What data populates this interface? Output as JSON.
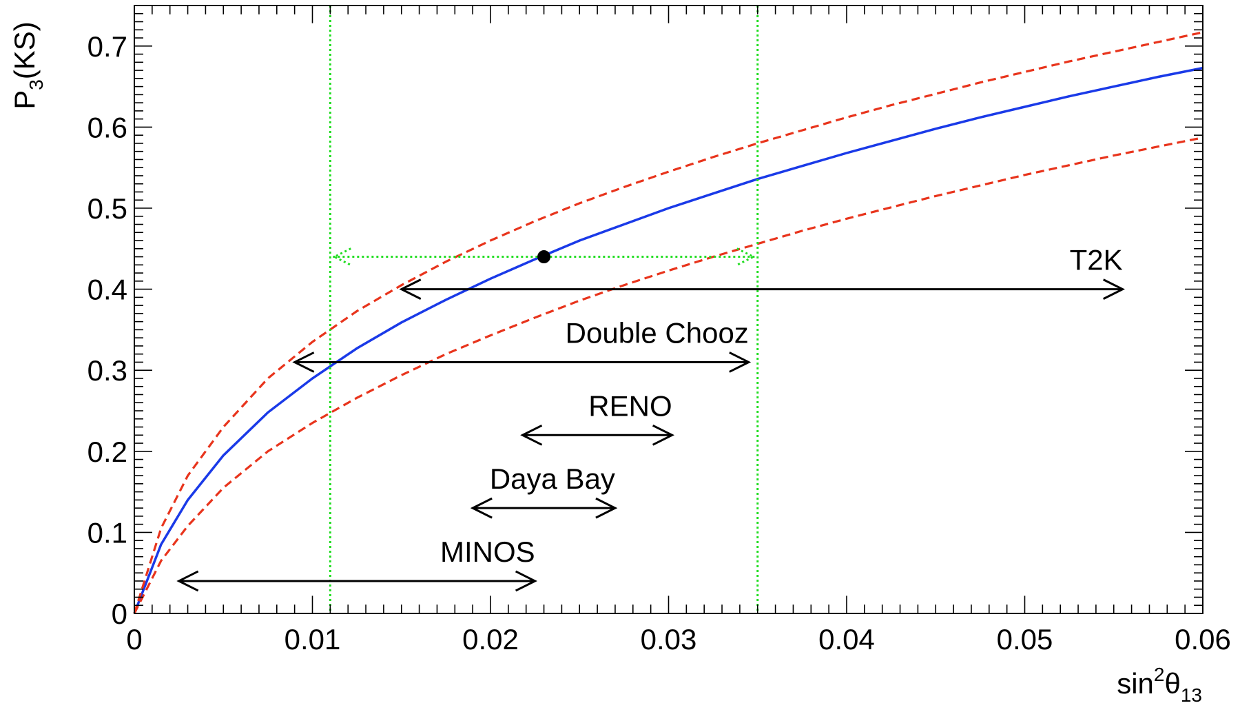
{
  "chart_data": {
    "type": "line",
    "title": "",
    "xlabel": {
      "base": "sin",
      "sup": "2",
      "symbol": "θ",
      "sub": "13"
    },
    "ylabel": {
      "base": "P",
      "sub": "3",
      "rest": "(KS)"
    },
    "xlim": [
      0,
      0.06
    ],
    "ylim": [
      0,
      0.75
    ],
    "x_ticks": [
      0,
      0.01,
      0.02,
      0.03,
      0.04,
      0.05,
      0.06
    ],
    "x_tick_labels": [
      "0",
      "0.01",
      "0.02",
      "0.03",
      "0.04",
      "0.05",
      "0.06"
    ],
    "y_ticks": [
      0,
      0.1,
      0.2,
      0.3,
      0.4,
      0.5,
      0.6,
      0.7
    ],
    "y_tick_labels": [
      "0",
      "0.1",
      "0.2",
      "0.3",
      "0.4",
      "0.5",
      "0.6",
      "0.7"
    ],
    "grid": false,
    "legend": "none",
    "series": [
      {
        "style": "solid",
        "color": "#1a3ae8",
        "x": [
          0,
          0.0015,
          0.003,
          0.005,
          0.0075,
          0.01,
          0.0125,
          0.015,
          0.0175,
          0.02,
          0.0225,
          0.025,
          0.0275,
          0.03,
          0.0325,
          0.035,
          0.0375,
          0.04,
          0.0425,
          0.045,
          0.0475,
          0.05,
          0.0525,
          0.055,
          0.0575,
          0.06
        ],
        "values": [
          0,
          0.085,
          0.14,
          0.195,
          0.248,
          0.29,
          0.327,
          0.359,
          0.387,
          0.413,
          0.437,
          0.46,
          0.48,
          0.5,
          0.518,
          0.536,
          0.552,
          0.568,
          0.583,
          0.598,
          0.612,
          0.625,
          0.638,
          0.65,
          0.662,
          0.673
        ]
      },
      {
        "style": "dashed",
        "color": "#e8341c",
        "x": [
          0,
          0.0015,
          0.003,
          0.005,
          0.0075,
          0.01,
          0.0125,
          0.015,
          0.0175,
          0.02,
          0.0225,
          0.025,
          0.0275,
          0.03,
          0.0325,
          0.035,
          0.0375,
          0.04,
          0.0425,
          0.045,
          0.0475,
          0.05,
          0.0525,
          0.055,
          0.0575,
          0.06
        ],
        "values": [
          0,
          0.105,
          0.17,
          0.23,
          0.29,
          0.335,
          0.373,
          0.405,
          0.434,
          0.46,
          0.484,
          0.506,
          0.526,
          0.545,
          0.563,
          0.58,
          0.596,
          0.612,
          0.627,
          0.641,
          0.655,
          0.668,
          0.681,
          0.693,
          0.705,
          0.717
        ]
      },
      {
        "style": "dashed",
        "color": "#e8341c",
        "x": [
          0,
          0.0015,
          0.003,
          0.005,
          0.0075,
          0.01,
          0.0125,
          0.015,
          0.0175,
          0.02,
          0.0225,
          0.025,
          0.0275,
          0.03,
          0.0325,
          0.035,
          0.0375,
          0.04,
          0.0425,
          0.045,
          0.0475,
          0.05,
          0.0525,
          0.055,
          0.0575,
          0.06
        ],
        "values": [
          0,
          0.065,
          0.108,
          0.155,
          0.2,
          0.235,
          0.266,
          0.294,
          0.32,
          0.343,
          0.365,
          0.386,
          0.405,
          0.423,
          0.44,
          0.456,
          0.472,
          0.487,
          0.501,
          0.515,
          0.528,
          0.541,
          0.553,
          0.565,
          0.576,
          0.587
        ]
      }
    ],
    "central_point": {
      "x": 0.023,
      "y": 0.44
    },
    "band": {
      "x_low": 0.011,
      "x_high": 0.035,
      "color": "#22dd22"
    },
    "ranges": [
      {
        "label": "T2K",
        "x_low": 0.015,
        "x_high": 0.0555,
        "y": 0.4
      },
      {
        "label": "Double Chooz",
        "x_low": 0.009,
        "x_high": 0.0345,
        "y": 0.31
      },
      {
        "label": "RENO",
        "x_low": 0.0218,
        "x_high": 0.0302,
        "y": 0.22
      },
      {
        "label": "Daya Bay",
        "x_low": 0.019,
        "x_high": 0.027,
        "y": 0.13
      },
      {
        "label": "MINOS",
        "x_low": 0.0025,
        "x_high": 0.0225,
        "y": 0.04
      }
    ]
  }
}
